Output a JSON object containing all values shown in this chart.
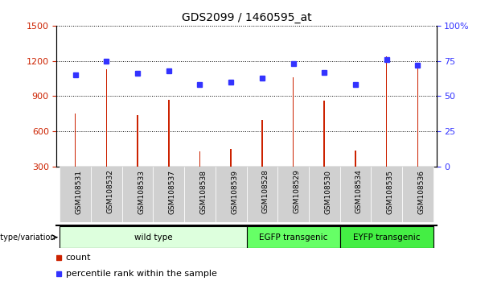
{
  "title": "GDS2099 / 1460595_at",
  "categories": [
    "GSM108531",
    "GSM108532",
    "GSM108533",
    "GSM108537",
    "GSM108538",
    "GSM108539",
    "GSM108528",
    "GSM108529",
    "GSM108530",
    "GSM108534",
    "GSM108535",
    "GSM108536"
  ],
  "bar_values": [
    750,
    1130,
    740,
    870,
    430,
    450,
    700,
    1060,
    860,
    440,
    1240,
    1180
  ],
  "percentile_values": [
    65,
    75,
    66,
    68,
    58,
    60,
    63,
    73,
    67,
    58,
    76,
    72
  ],
  "bar_color": "#cc2200",
  "percentile_color": "#3333ff",
  "left_ylim": [
    300,
    1500
  ],
  "right_ylim": [
    0,
    100
  ],
  "left_yticks": [
    300,
    600,
    900,
    1200,
    1500
  ],
  "right_yticks": [
    0,
    25,
    50,
    75,
    100
  ],
  "right_yticklabels": [
    "0",
    "25",
    "50",
    "75",
    "100%"
  ],
  "groups": [
    {
      "label": "wild type",
      "start": 0,
      "end": 6,
      "color": "#ddffdd"
    },
    {
      "label": "EGFP transgenic",
      "start": 6,
      "end": 9,
      "color": "#66ff66"
    },
    {
      "label": "EYFP transgenic",
      "start": 9,
      "end": 12,
      "color": "#44ee44"
    }
  ],
  "group_label_prefix": "genotype/variation",
  "legend_count_label": "count",
  "legend_percentile_label": "percentile rank within the sample",
  "bar_width": 0.04,
  "figsize": [
    6.13,
    3.54
  ],
  "dpi": 100
}
